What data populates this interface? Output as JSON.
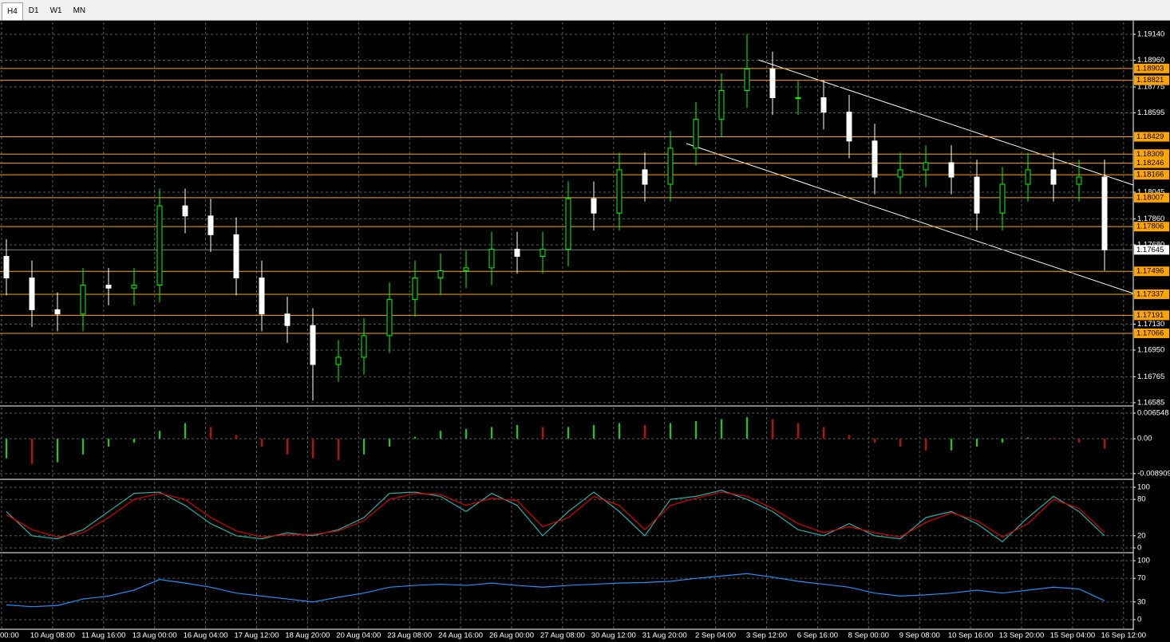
{
  "toolbar": {
    "tabs": [
      "H4",
      "D1",
      "W1",
      "MN"
    ]
  },
  "chart_data": [
    {
      "type": "candlestick",
      "open": [
        1.176,
        1.1745,
        1.1723,
        1.172,
        1.174,
        1.1738,
        1.174,
        1.1795,
        1.1788,
        1.1775,
        1.1745,
        1.172,
        1.1712,
        1.1685,
        1.169,
        1.1705,
        1.173,
        1.1745,
        1.175,
        1.1752,
        1.1765,
        1.176,
        1.1765,
        1.18,
        1.179,
        1.182,
        1.181,
        1.1835,
        1.1855,
        1.1875,
        1.189,
        1.187,
        1.187,
        1.186,
        1.184,
        1.1815,
        1.182,
        1.1825,
        1.1815,
        1.179,
        1.181,
        1.182,
        1.181,
        1.1815
      ],
      "high": [
        1.1772,
        1.1757,
        1.1735,
        1.1752,
        1.1752,
        1.1752,
        1.1807,
        1.1807,
        1.18,
        1.1787,
        1.1757,
        1.1732,
        1.1724,
        1.1702,
        1.1717,
        1.1742,
        1.1757,
        1.1762,
        1.1764,
        1.1777,
        1.1777,
        1.1777,
        1.1812,
        1.1812,
        1.1832,
        1.1832,
        1.1847,
        1.1867,
        1.1887,
        1.1914,
        1.1902,
        1.1882,
        1.1882,
        1.1872,
        1.1852,
        1.1832,
        1.1837,
        1.1837,
        1.1827,
        1.1822,
        1.1832,
        1.1832,
        1.1827,
        1.1827
      ],
      "low": [
        1.1733,
        1.1711,
        1.1708,
        1.1708,
        1.1726,
        1.1726,
        1.1728,
        1.1776,
        1.1763,
        1.1733,
        1.1708,
        1.17,
        1.166,
        1.1673,
        1.1678,
        1.1693,
        1.1718,
        1.1733,
        1.1738,
        1.174,
        1.1748,
        1.1748,
        1.1753,
        1.1778,
        1.1778,
        1.1798,
        1.1798,
        1.1823,
        1.1843,
        1.1863,
        1.1858,
        1.1858,
        1.1848,
        1.1828,
        1.1803,
        1.1803,
        1.1808,
        1.1803,
        1.1778,
        1.1778,
        1.1798,
        1.1798,
        1.1798,
        1.175
      ],
      "close": [
        1.1745,
        1.1723,
        1.172,
        1.174,
        1.1738,
        1.174,
        1.1795,
        1.1788,
        1.1775,
        1.1745,
        1.172,
        1.1712,
        1.1685,
        1.169,
        1.1705,
        1.173,
        1.1745,
        1.175,
        1.1752,
        1.1765,
        1.176,
        1.1765,
        1.18,
        1.179,
        1.182,
        1.181,
        1.1835,
        1.1855,
        1.1875,
        1.189,
        1.187,
        1.187,
        1.186,
        1.184,
        1.1815,
        1.182,
        1.1825,
        1.1815,
        1.179,
        1.181,
        1.182,
        1.181,
        1.1815,
        1.17645
      ],
      "up_color": "#00ff00",
      "down_color": "#ffffff",
      "ylim": [
        1.16568,
        1.19223
      ],
      "yticks": [
        {
          "value": 1.1914,
          "label": "1.19140"
        },
        {
          "value": 1.1896,
          "label": "1.18960"
        },
        1.18775,
        1.18595,
        1.18045,
        {
          "value": 1.1786,
          "label": "1.17860"
        },
        {
          "value": 1.1768,
          "label": "1.17680"
        },
        {
          "value": 1.1713,
          "label": "1.17130"
        },
        {
          "value": 1.1695,
          "label": "1.16950"
        },
        1.16765,
        1.16585
      ],
      "levels": [
        1.18903,
        1.18821,
        1.18429,
        1.18309,
        1.18246,
        1.18166,
        1.18007,
        1.17806,
        1.17496,
        1.17337,
        1.17191,
        1.17066
      ],
      "level_color": "#ffa500",
      "current_price": 1.17645,
      "x_labels": [
        "00:00",
        "10 Aug 08:00",
        "11 Aug 16:00",
        "13 Aug 00:00",
        "16 Aug 04:00",
        "17 Aug 12:00",
        "18 Aug 20:00",
        "20 Aug 04:00",
        "23 Aug 08:00",
        "24 Aug 16:00",
        "26 Aug 00:00",
        "27 Aug 08:00",
        "30 Aug 12:00",
        "31 Aug 20:00",
        "2 Sep 04:00",
        "3 Sep 12:00",
        "6 Sep 16:00",
        "8 Sep 00:00",
        "9 Sep 08:00",
        "10 Sep 16:00",
        "13 Sep 20:00",
        "15 Sep 04:00",
        "16 Sep 12:00"
      ],
      "grid": true
    },
    {
      "type": "histogram",
      "values": [
        -0.005,
        -0.0065,
        -0.006,
        -0.004,
        -0.002,
        -0.001,
        0.002,
        0.004,
        0.003,
        0.001,
        -0.002,
        -0.004,
        -0.005,
        -0.0055,
        -0.004,
        -0.002,
        0.0005,
        0.002,
        0.0025,
        0.003,
        0.0035,
        0.003,
        0.003,
        0.0035,
        0.004,
        0.0035,
        0.004,
        0.0045,
        0.005,
        0.0055,
        0.005,
        0.004,
        0.003,
        0.001,
        -0.001,
        -0.002,
        -0.003,
        -0.003,
        -0.002,
        -0.001,
        0.0003,
        0.0002,
        -0.001,
        -0.0025
      ],
      "up_color": "#00e000",
      "down_color": "#e00000",
      "ylim": [
        -0.010169,
        0.007972
      ],
      "yticks": [
        0.006548,
        {
          "value": 0,
          "label": "0.00"
        },
        -0.008909
      ],
      "grid": true
    },
    {
      "type": "line",
      "series": [
        {
          "color": "#20b2aa",
          "values": [
            60,
            20,
            15,
            30,
            60,
            90,
            92,
            70,
            40,
            20,
            15,
            25,
            20,
            30,
            50,
            90,
            92,
            85,
            60,
            90,
            70,
            20,
            60,
            92,
            60,
            20,
            80,
            85,
            95,
            80,
            60,
            30,
            20,
            40,
            20,
            15,
            50,
            60,
            40,
            10,
            50,
            85,
            60,
            20
          ]
        },
        {
          "color": "#e00000",
          "values": [
            55,
            30,
            18,
            25,
            50,
            80,
            90,
            80,
            50,
            28,
            18,
            22,
            22,
            28,
            45,
            80,
            90,
            88,
            70,
            82,
            78,
            35,
            50,
            85,
            70,
            30,
            70,
            82,
            92,
            85,
            65,
            40,
            25,
            35,
            25,
            18,
            42,
            58,
            45,
            18,
            40,
            80,
            65,
            25
          ]
        }
      ],
      "ylim": [
        -6.6,
        109.2
      ],
      "yticks": [
        100,
        80,
        20,
        0
      ],
      "grid": true
    },
    {
      "type": "line",
      "series": [
        {
          "color": "#1e90ff",
          "values": [
            25,
            22,
            24,
            35,
            40,
            50,
            68,
            62,
            55,
            45,
            40,
            35,
            30,
            38,
            45,
            55,
            58,
            60,
            58,
            62,
            58,
            55,
            58,
            60,
            62,
            63,
            65,
            70,
            74,
            78,
            72,
            65,
            60,
            55,
            45,
            40,
            42,
            45,
            50,
            45,
            50,
            55,
            52,
            32
          ]
        }
      ],
      "ylim": [
        -14.9,
        110.8
      ],
      "yticks": [
        100,
        70,
        30,
        0
      ],
      "grid": true
    }
  ]
}
